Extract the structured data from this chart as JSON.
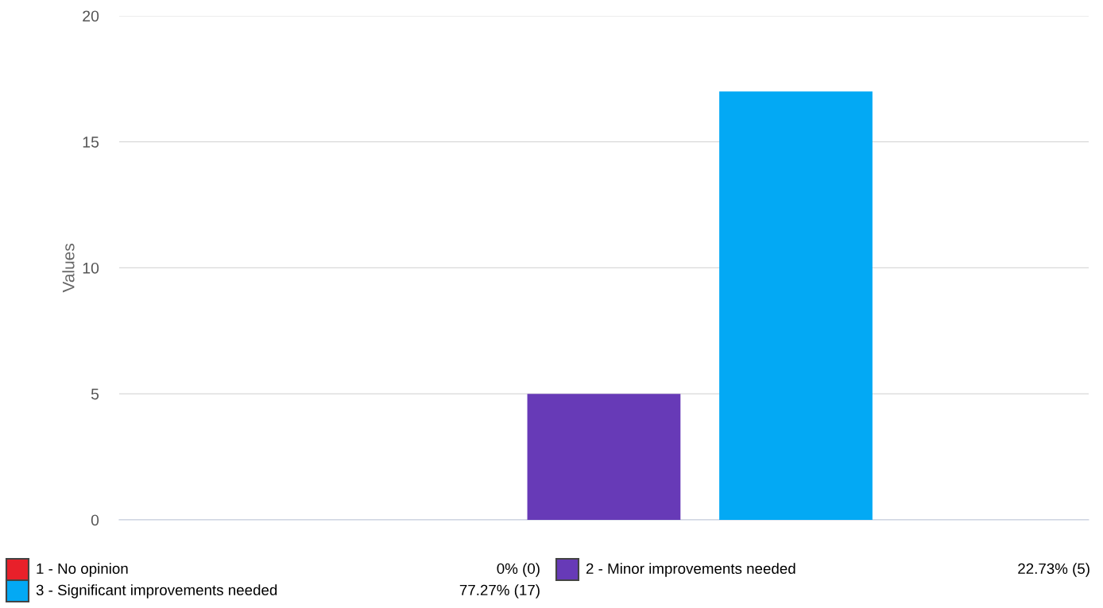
{
  "chart_data": {
    "type": "bar",
    "ylabel": "Values",
    "categories": [
      null
    ],
    "series": [
      {
        "name": "1 - No opinion",
        "color": "#e8202a",
        "values": [
          0
        ]
      },
      {
        "name": "2 - Minor improvements needed",
        "color": "#673ab7",
        "values": [
          5
        ]
      },
      {
        "name": "3 - Significant improvements needed",
        "color": "#03a9f4",
        "values": [
          17
        ]
      }
    ],
    "annotations": [
      "0% (0)",
      "22.73% (5)",
      "77.27% (17)"
    ],
    "ylim": [
      0,
      20
    ],
    "yticks": [
      0,
      5,
      10,
      15,
      20
    ],
    "grid": "y",
    "legend": "bottom"
  }
}
